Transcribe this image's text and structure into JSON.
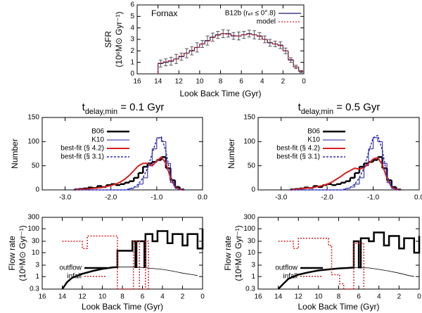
{
  "chart_data": [
    {
      "type": "histogram",
      "annotation": "Fornax",
      "xlabel": "Look Back Time (Gyr)",
      "ylabel": [
        "SFR",
        "(10⁶M⊙ Gyr⁻¹)"
      ],
      "xlim": [
        16,
        0
      ],
      "xticks": [
        16,
        14,
        12,
        10,
        8,
        6,
        4,
        2,
        0
      ],
      "ylim": [
        0,
        6
      ],
      "yticks": [
        0,
        1,
        2,
        3,
        4,
        5,
        6
      ],
      "legend": "upper right",
      "bins": [
        14,
        13.5,
        13,
        12.5,
        12,
        11.5,
        11,
        10.5,
        10,
        9.5,
        9,
        8.5,
        8,
        7.5,
        7,
        6.5,
        6,
        5.5,
        5,
        4.5,
        4,
        3.5,
        3,
        2.5,
        2,
        1.5,
        1,
        0.5,
        0
      ],
      "series": [
        {
          "name": "B12b (rₑₗₗ ≤ 0°.8)",
          "color": "#1a1a6e",
          "width": 1.2,
          "style": "step",
          "values": [
            0.9,
            1.0,
            1.1,
            1.3,
            1.5,
            1.8,
            2.0,
            2.3,
            2.6,
            2.9,
            3.2,
            3.4,
            3.5,
            3.5,
            3.3,
            3.3,
            3.4,
            3.5,
            3.4,
            3.3,
            3.0,
            2.7,
            2.6,
            2.5,
            2.0,
            1.2,
            0.6,
            0.2
          ],
          "errors": [
            0.3,
            0.3,
            0.35,
            0.4,
            0.3,
            0.4,
            0.35,
            0.4,
            0.3,
            0.4,
            0.35,
            0.3,
            0.35,
            0.3,
            0.3,
            0.35,
            0.3,
            0.3,
            0.35,
            0.3,
            0.3,
            0.3,
            0.25,
            0.3,
            0.25,
            0.2,
            0.15,
            0.1
          ]
        },
        {
          "name": "model",
          "color": "#d62020",
          "width": 1.2,
          "dash": "2,2",
          "style": "step",
          "values": [
            0.95,
            1.05,
            1.15,
            1.3,
            1.55,
            1.8,
            2.05,
            2.3,
            2.6,
            2.85,
            3.15,
            3.35,
            3.5,
            3.45,
            3.35,
            3.3,
            3.4,
            3.45,
            3.4,
            3.25,
            3.0,
            2.75,
            2.6,
            2.45,
            2.0,
            1.25,
            0.6,
            0.25
          ]
        }
      ]
    },
    {
      "type": "histogram",
      "title": [
        "t",
        "delay,min",
        " = 0.1 Gyr"
      ],
      "ylabel": [
        "Number"
      ],
      "xlim": [
        -3.5,
        0
      ],
      "xticks": [
        {
          "value": -3,
          "label": "-3.0"
        },
        {
          "value": -2,
          "label": "-2.0"
        },
        {
          "value": -1,
          "label": "-1.0"
        },
        {
          "value": 0,
          "label": "0.0"
        }
      ],
      "ylim": [
        0,
        150
      ],
      "yticks": [
        0,
        50,
        100,
        150
      ],
      "legend": "upper left",
      "bins": [
        -2.8,
        -2.7,
        -2.6,
        -2.5,
        -2.4,
        -2.3,
        -2.2,
        -2.1,
        -2.0,
        -1.9,
        -1.8,
        -1.7,
        -1.6,
        -1.5,
        -1.4,
        -1.3,
        -1.2,
        -1.1,
        -1.0,
        -0.9,
        -0.8,
        -0.7,
        -0.6,
        -0.5,
        -0.4
      ],
      "x": [
        -2.8,
        -2.7,
        -2.6,
        -2.5,
        -2.4,
        -2.3,
        -2.2,
        -2.1,
        -2.0,
        -1.9,
        -1.8,
        -1.7,
        -1.6,
        -1.5,
        -1.4,
        -1.3,
        -1.2,
        -1.1,
        -1.0,
        -0.9,
        -0.8,
        -0.7,
        -0.6,
        -0.5,
        -0.4
      ],
      "series": [
        {
          "name": "B06",
          "color": "#000000",
          "width": 2.5,
          "style": "step",
          "values": [
            1,
            2,
            3,
            5,
            4,
            8,
            6,
            10,
            12,
            10,
            12,
            15,
            18,
            25,
            35,
            48,
            55,
            58,
            62,
            68,
            45,
            20,
            6,
            1
          ]
        },
        {
          "name": "K10",
          "color": "#1c1ca0",
          "width": 1,
          "style": "step",
          "values": [
            0,
            0,
            0,
            0,
            0,
            0,
            0,
            0,
            0,
            0,
            0,
            0,
            3,
            6,
            12,
            25,
            50,
            85,
            108,
            100,
            55,
            15,
            3,
            0
          ]
        },
        {
          "name": "best-fit (§ 4.2)",
          "color": "#d62020",
          "width": 2,
          "style": "line",
          "values": [
            0,
            1,
            1,
            2,
            3,
            4,
            5,
            7,
            9,
            12,
            16,
            22,
            30,
            40,
            50,
            55,
            55,
            50,
            60,
            68,
            55,
            25,
            6,
            1,
            0
          ]
        },
        {
          "name": "best-fit (§ 3.1)",
          "color": "#2b2bb8",
          "width": 1.5,
          "dash": "3,2",
          "style": "line",
          "values": [
            0,
            0,
            0,
            0,
            0,
            0,
            0,
            0,
            0,
            0,
            0,
            0,
            2,
            5,
            12,
            25,
            45,
            75,
            105,
            110,
            80,
            30,
            5,
            0,
            0
          ]
        }
      ]
    },
    {
      "type": "histogram",
      "title": [
        "t",
        "delay,min",
        " = 0.5 Gyr"
      ],
      "ylabel": [
        "Number"
      ],
      "xlim": [
        -3.5,
        0
      ],
      "xticks": [
        {
          "value": -3,
          "label": "-3.0"
        },
        {
          "value": -2,
          "label": "-2.0"
        },
        {
          "value": -1,
          "label": "-1.0"
        },
        {
          "value": 0,
          "label": "0.0"
        }
      ],
      "ylim": [
        0,
        150
      ],
      "yticks": [
        0,
        50,
        100,
        150
      ],
      "legend": "upper left",
      "bins": [
        -2.8,
        -2.7,
        -2.6,
        -2.5,
        -2.4,
        -2.3,
        -2.2,
        -2.1,
        -2.0,
        -1.9,
        -1.8,
        -1.7,
        -1.6,
        -1.5,
        -1.4,
        -1.3,
        -1.2,
        -1.1,
        -1.0,
        -0.9,
        -0.8,
        -0.7,
        -0.6,
        -0.5,
        -0.4
      ],
      "x": [
        -2.8,
        -2.7,
        -2.6,
        -2.5,
        -2.4,
        -2.3,
        -2.2,
        -2.1,
        -2.0,
        -1.9,
        -1.8,
        -1.7,
        -1.6,
        -1.5,
        -1.4,
        -1.3,
        -1.2,
        -1.1,
        -1.0,
        -0.9,
        -0.8,
        -0.7,
        -0.6,
        -0.5,
        -0.4
      ],
      "series": [
        {
          "name": "B06",
          "color": "#000000",
          "width": 2.5,
          "style": "step",
          "values": [
            1,
            2,
            3,
            5,
            4,
            8,
            6,
            10,
            12,
            10,
            12,
            15,
            18,
            25,
            35,
            48,
            55,
            58,
            62,
            68,
            45,
            20,
            6,
            1
          ]
        },
        {
          "name": "K10",
          "color": "#1c1ca0",
          "width": 1,
          "style": "step",
          "values": [
            0,
            0,
            0,
            0,
            0,
            0,
            0,
            0,
            0,
            0,
            0,
            0,
            3,
            6,
            12,
            25,
            50,
            85,
            108,
            100,
            55,
            15,
            3,
            0
          ]
        },
        {
          "name": "best-fit (§ 4.2)",
          "color": "#d62020",
          "width": 2,
          "style": "line",
          "values": [
            0,
            1,
            2,
            3,
            4,
            5,
            7,
            9,
            12,
            16,
            22,
            28,
            35,
            40,
            45,
            43,
            46,
            55,
            64,
            67,
            52,
            24,
            6,
            1,
            0
          ]
        },
        {
          "name": "best-fit (§ 3.1)",
          "color": "#2b2bb8",
          "width": 1.5,
          "dash": "3,2",
          "style": "line",
          "values": [
            0,
            0,
            0,
            0,
            0,
            0,
            0,
            0,
            0,
            0,
            0,
            0,
            2,
            5,
            12,
            25,
            45,
            78,
            108,
            113,
            82,
            30,
            5,
            0,
            0
          ]
        }
      ]
    },
    {
      "type": "line",
      "xlabel": "Look Back Time (Gyr)",
      "ylabel": [
        "Flow rate",
        "(10⁶M⊙ Gyr⁻¹)"
      ],
      "xlim": [
        16,
        0
      ],
      "xticks": [
        16,
        14,
        12,
        10,
        8,
        6,
        4,
        2,
        0
      ],
      "ylim": [
        0.3,
        300
      ],
      "yticks": [
        0.3,
        1,
        3,
        10,
        30,
        100,
        300
      ],
      "log_y": true,
      "legend": "lower left",
      "series": [
        {
          "name": "outflow",
          "color": "#000000",
          "width": 2.5,
          "x": [
            14,
            13.5,
            13,
            12,
            11,
            10,
            9,
            8.5,
            8.5,
            7,
            7,
            6.7,
            6.7,
            6.6,
            6.6,
            5.8,
            5.8,
            5.7,
            5.7,
            5,
            5,
            4.5,
            4.5,
            3.5,
            3.5,
            3,
            3,
            2,
            2,
            1.5,
            1.5,
            0.5,
            0.5,
            0,
            0
          ],
          "values": [
            0.3,
            0.6,
            0.9,
            1.3,
            1.7,
            2.1,
            2.4,
            2.5,
            12,
            12,
            30,
            30,
            2.5,
            2.5,
            30,
            30,
            2.5,
            2.5,
            60,
            60,
            30,
            30,
            80,
            80,
            25,
            25,
            60,
            60,
            20,
            20,
            60,
            60,
            15,
            15,
            100
          ]
        },
        {
          "color": "#000000",
          "width": 0.8,
          "x": [
            8.5,
            7,
            6,
            5,
            4,
            3,
            2,
            1,
            0.5
          ],
          "values": [
            2.5,
            2.5,
            2.4,
            2.2,
            2.0,
            1.7,
            1.4,
            1.2,
            1.1
          ]
        },
        {
          "name": "infall",
          "color": "#d62020",
          "width": 1.5,
          "dash": "2,2",
          "x": [
            14,
            12,
            12,
            11.5,
            11.5,
            8.5,
            8.5,
            6.9,
            6.9,
            6.3,
            6.3,
            5.7,
            5.7,
            5.4,
            5.4
          ],
          "values": [
            30,
            30,
            15,
            15,
            50,
            50,
            0.3,
            0.3,
            30,
            30,
            0.3,
            0.3,
            30,
            30,
            0.3
          ]
        }
      ]
    },
    {
      "type": "line",
      "xlabel": "Look Back Time (Gyr)",
      "ylabel": [
        "Flow rate",
        "(10⁶M⊙ Gyr⁻¹)"
      ],
      "xlim": [
        16,
        0
      ],
      "xticks": [
        16,
        14,
        12,
        10,
        8,
        6,
        4,
        2,
        0
      ],
      "ylim": [
        0.3,
        300
      ],
      "yticks": [
        0.3,
        1,
        3,
        10,
        30,
        100,
        300
      ],
      "log_y": true,
      "legend": "lower left",
      "series": [
        {
          "name": "outflow",
          "color": "#000000",
          "width": 2.5,
          "x": [
            14,
            13.5,
            13,
            12,
            11,
            10,
            9,
            8,
            7,
            6.5,
            6.5,
            6,
            6,
            5.8,
            5.8,
            5,
            5,
            4.5,
            4.5,
            3.5,
            3.5,
            3,
            3,
            2,
            2,
            1.5,
            1.5,
            0.5,
            0.5,
            0,
            0
          ],
          "values": [
            0.3,
            0.5,
            0.8,
            1.2,
            1.5,
            1.8,
            2.0,
            2.2,
            2.3,
            2.4,
            30,
            30,
            2.4,
            2.4,
            40,
            40,
            30,
            30,
            70,
            70,
            20,
            20,
            50,
            50,
            15,
            15,
            40,
            40,
            10,
            10,
            50
          ]
        },
        {
          "color": "#000000",
          "width": 0.8,
          "x": [
            6.5,
            5,
            4,
            3,
            2,
            1,
            0.5
          ],
          "values": [
            2.4,
            2.3,
            2.0,
            1.7,
            1.4,
            1.1,
            1.0
          ]
        },
        {
          "name": "infall",
          "color": "#d62020",
          "width": 1.5,
          "dash": "2,2",
          "x": [
            14,
            12.5,
            12.5,
            12,
            12,
            9,
            9,
            8.7,
            8.7,
            7.9,
            7.9,
            7.5,
            7.5,
            6.5,
            6.5,
            5.5,
            5.5
          ],
          "values": [
            30,
            30,
            15,
            15,
            40,
            40,
            20,
            20,
            1.2,
            1.2,
            0.5,
            0.5,
            0.3,
            0.3,
            25,
            25,
            0.3
          ]
        }
      ]
    }
  ]
}
